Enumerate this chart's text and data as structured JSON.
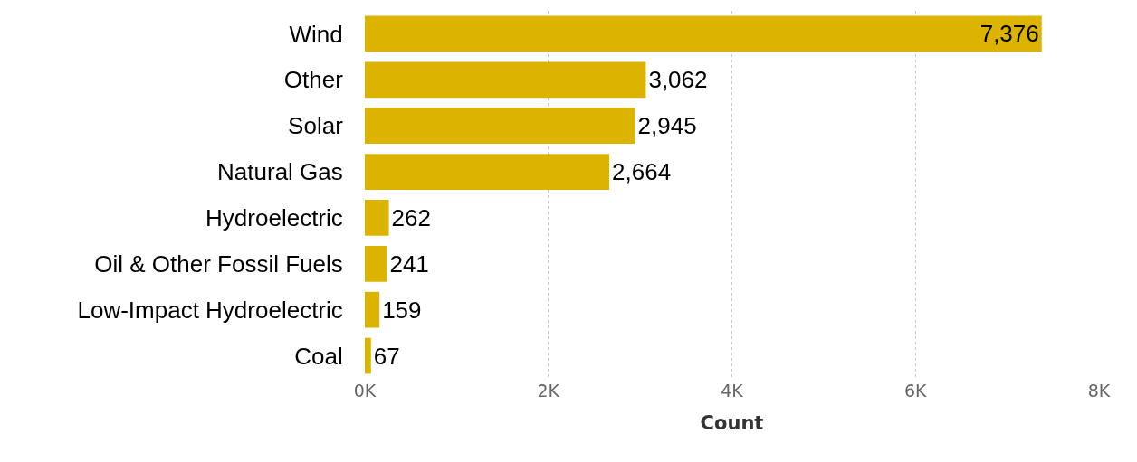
{
  "chart_data": {
    "type": "bar",
    "orientation": "horizontal",
    "xlabel": "Count",
    "categories": [
      "Wind",
      "Other",
      "Solar",
      "Natural Gas",
      "Hydroelectric",
      "Oil & Other Fossil Fuels",
      "Low-Impact Hydroelectric",
      "Coal"
    ],
    "values": [
      7376,
      3062,
      2945,
      2664,
      262,
      241,
      159,
      67
    ],
    "value_labels": [
      "7,376",
      "3,062",
      "2,945",
      "2,664",
      "262",
      "241",
      "159",
      "67"
    ],
    "color": "#dcb400",
    "xlim": [
      0,
      8000
    ],
    "xticks": [
      {
        "value": 0,
        "label": "0K"
      },
      {
        "value": 2000,
        "label": "2K"
      },
      {
        "value": 4000,
        "label": "4K"
      },
      {
        "value": 6000,
        "label": "6K"
      },
      {
        "value": 8000,
        "label": "8K"
      }
    ],
    "grid": "x"
  }
}
